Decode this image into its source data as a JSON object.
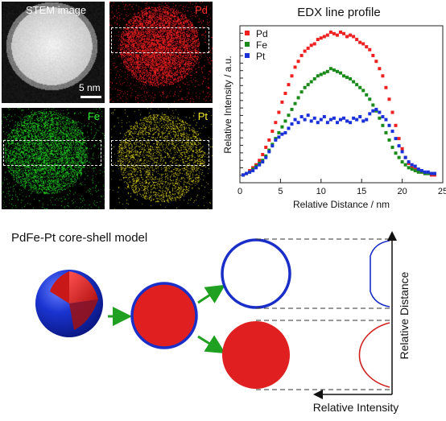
{
  "panels": {
    "stem_label": "STEM image",
    "pd_label": "Pd",
    "fe_label": "Fe",
    "pt_label": "Pt",
    "scale_label": "5 nm",
    "colors": {
      "pd": "#ff2020",
      "fe": "#22dd22",
      "pt": "#e8e020"
    }
  },
  "model": {
    "title": "PdFe-Pt core-shell model",
    "y_axis_label": "Relative Distance",
    "x_axis_label": "Relative Intensity",
    "colors": {
      "shell": "#1a2ec8",
      "core": "#e02020",
      "arrow": "#20a020"
    }
  },
  "chart_data": {
    "type": "scatter",
    "title": "EDX line profile",
    "xlabel": "Relative Distance / nm",
    "ylabel": "Relative Intensity / a.u.",
    "xlim": [
      0,
      25
    ],
    "ylim": [
      0,
      1
    ],
    "xticks": [
      0,
      5,
      10,
      15,
      20,
      25
    ],
    "grid": false,
    "legend_position": "top-left",
    "series": [
      {
        "name": "Pd",
        "color": "#ee2020",
        "x": [
          0.4,
          0.8,
          1.2,
          1.6,
          2.0,
          2.4,
          2.8,
          3.2,
          3.6,
          4.0,
          4.4,
          4.8,
          5.2,
          5.6,
          6.0,
          6.4,
          6.8,
          7.2,
          7.6,
          8.0,
          8.4,
          8.8,
          9.2,
          9.6,
          10.0,
          10.4,
          10.8,
          11.2,
          11.6,
          12.0,
          12.4,
          12.8,
          13.2,
          13.6,
          14.0,
          14.4,
          14.8,
          15.2,
          15.6,
          16.0,
          16.4,
          16.8,
          17.2,
          17.6,
          18.0,
          18.4,
          18.8,
          19.2,
          19.6,
          20.0,
          20.4,
          20.8,
          21.2,
          21.6,
          22.0,
          22.4,
          22.8,
          23.2,
          23.6,
          24.0
        ],
        "y": [
          0.02,
          0.03,
          0.05,
          0.07,
          0.09,
          0.12,
          0.16,
          0.21,
          0.26,
          0.32,
          0.38,
          0.45,
          0.52,
          0.58,
          0.64,
          0.7,
          0.76,
          0.8,
          0.84,
          0.87,
          0.89,
          0.91,
          0.92,
          0.95,
          0.96,
          0.97,
          0.98,
          1.0,
          0.99,
          0.98,
          1.0,
          0.99,
          0.97,
          0.98,
          0.97,
          0.95,
          0.93,
          0.92,
          0.9,
          0.88,
          0.84,
          0.8,
          0.75,
          0.7,
          0.62,
          0.54,
          0.45,
          0.36,
          0.27,
          0.2,
          0.14,
          0.1,
          0.08,
          0.06,
          0.05,
          0.04,
          0.03,
          0.03,
          0.02,
          0.02
        ]
      },
      {
        "name": "Fe",
        "color": "#1a8a1a",
        "x": [
          0.4,
          0.8,
          1.2,
          1.6,
          2.0,
          2.4,
          2.8,
          3.2,
          3.6,
          4.0,
          4.4,
          4.8,
          5.2,
          5.6,
          6.0,
          6.4,
          6.8,
          7.2,
          7.6,
          8.0,
          8.4,
          8.8,
          9.2,
          9.6,
          10.0,
          10.4,
          10.8,
          11.2,
          11.6,
          12.0,
          12.4,
          12.8,
          13.2,
          13.6,
          14.0,
          14.4,
          14.8,
          15.2,
          15.6,
          16.0,
          16.4,
          16.8,
          17.2,
          17.6,
          18.0,
          18.4,
          18.8,
          19.2,
          19.6,
          20.0,
          20.4,
          20.8,
          21.2,
          21.6,
          22.0,
          22.4,
          22.8,
          23.2,
          23.6,
          24.0
        ],
        "y": [
          0.02,
          0.03,
          0.04,
          0.06,
          0.08,
          0.1,
          0.12,
          0.15,
          0.19,
          0.23,
          0.27,
          0.31,
          0.35,
          0.39,
          0.43,
          0.47,
          0.51,
          0.55,
          0.59,
          0.62,
          0.64,
          0.66,
          0.68,
          0.7,
          0.71,
          0.72,
          0.73,
          0.75,
          0.74,
          0.73,
          0.72,
          0.7,
          0.69,
          0.68,
          0.66,
          0.64,
          0.62,
          0.6,
          0.57,
          0.54,
          0.5,
          0.46,
          0.41,
          0.36,
          0.31,
          0.26,
          0.21,
          0.17,
          0.14,
          0.11,
          0.09,
          0.07,
          0.06,
          0.05,
          0.04,
          0.04,
          0.03,
          0.03,
          0.03,
          0.03
        ]
      },
      {
        "name": "Pt",
        "color": "#1a30d8",
        "x": [
          0.4,
          0.8,
          1.2,
          1.6,
          2.0,
          2.4,
          2.8,
          3.2,
          3.6,
          4.0,
          4.4,
          4.8,
          5.2,
          5.6,
          6.0,
          6.4,
          6.8,
          7.2,
          7.6,
          8.0,
          8.4,
          8.8,
          9.2,
          9.6,
          10.0,
          10.4,
          10.8,
          11.2,
          11.6,
          12.0,
          12.4,
          12.8,
          13.2,
          13.6,
          14.0,
          14.4,
          14.8,
          15.2,
          15.6,
          16.0,
          16.4,
          16.8,
          17.2,
          17.6,
          18.0,
          18.4,
          18.8,
          19.2,
          19.6,
          20.0,
          20.4,
          20.8,
          21.2,
          21.6,
          22.0,
          22.4,
          22.8,
          23.2,
          23.6,
          24.0
        ],
        "y": [
          0.02,
          0.03,
          0.04,
          0.05,
          0.07,
          0.09,
          0.11,
          0.14,
          0.18,
          0.22,
          0.26,
          0.28,
          0.3,
          0.31,
          0.34,
          0.37,
          0.4,
          0.38,
          0.42,
          0.4,
          0.43,
          0.39,
          0.41,
          0.38,
          0.4,
          0.42,
          0.38,
          0.4,
          0.41,
          0.38,
          0.4,
          0.41,
          0.39,
          0.38,
          0.41,
          0.4,
          0.42,
          0.39,
          0.4,
          0.44,
          0.46,
          0.47,
          0.45,
          0.42,
          0.4,
          0.36,
          0.32,
          0.27,
          0.22,
          0.18,
          0.14,
          0.11,
          0.09,
          0.08,
          0.06,
          0.05,
          0.04,
          0.04,
          0.03,
          0.03
        ]
      }
    ]
  }
}
